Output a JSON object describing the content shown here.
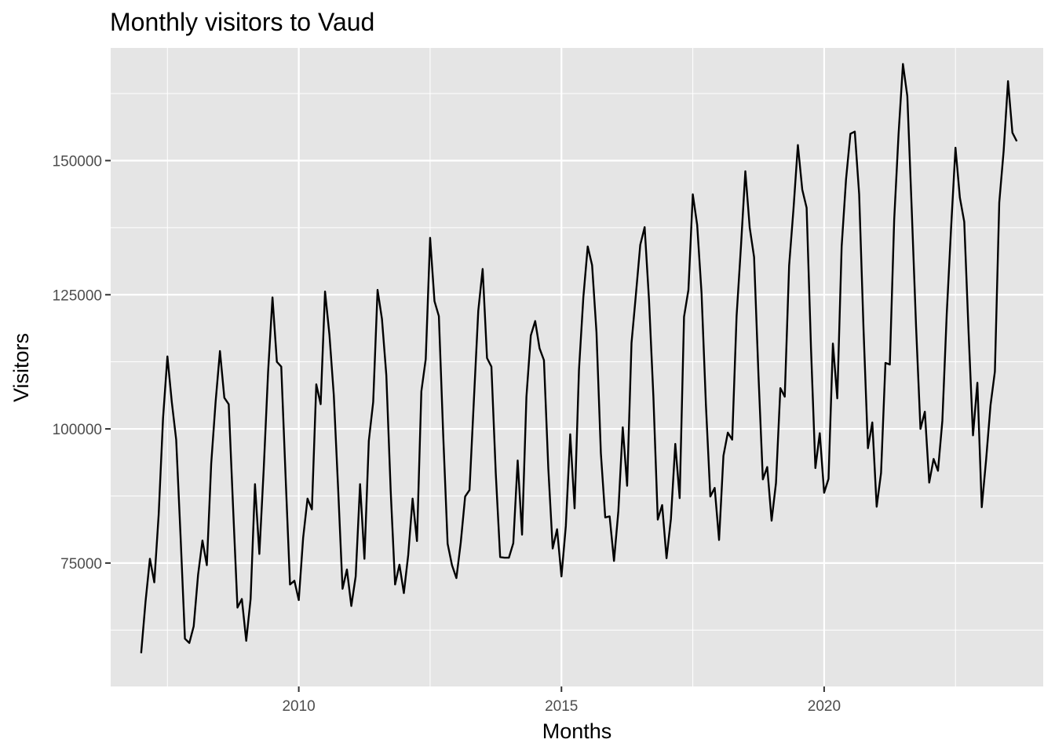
{
  "chart_data": {
    "type": "line",
    "title": "Monthly visitors to Vaud",
    "xlabel": "Months",
    "ylabel": "Visitors",
    "xlim": [
      2006.42,
      2024.17
    ],
    "ylim": [
      52000,
      171000
    ],
    "x_major_ticks": [
      2010,
      2015,
      2020
    ],
    "x_tick_labels": [
      "2010",
      "2015",
      "2020"
    ],
    "x_minor_ticks": [
      2007.5,
      2012.5,
      2017.5,
      2022.5
    ],
    "y_major_ticks": [
      75000,
      100000,
      125000,
      150000
    ],
    "y_tick_labels": [
      "75000",
      "100000",
      "125000",
      "150000"
    ],
    "y_minor_ticks": [
      62500,
      87500,
      112500,
      137500,
      162500
    ],
    "grid": true,
    "background": "#e5e5e5",
    "grid_color": "#ffffff",
    "line_color": "#000000",
    "series": [
      {
        "name": "",
        "start_year": 2007,
        "start_month": 1,
        "values": [
          58200,
          67800,
          75800,
          71400,
          84000,
          102000,
          113500,
          105000,
          98000,
          80000,
          60900,
          60100,
          63200,
          72800,
          79200,
          74600,
          93500,
          105000,
          114500,
          105800,
          104600,
          85300,
          66700,
          68300,
          60500,
          68300,
          89700,
          76700,
          92600,
          110700,
          124500,
          112500,
          111600,
          90900,
          71000,
          71700,
          68100,
          79700,
          87000,
          85000,
          108300,
          104600,
          125600,
          117600,
          106300,
          88700,
          70200,
          73800,
          67000,
          72500,
          89700,
          75800,
          97800,
          105000,
          125900,
          120500,
          110000,
          88400,
          71000,
          74700,
          69400,
          76500,
          87000,
          79100,
          107000,
          113000,
          135600,
          123800,
          121000,
          98700,
          78600,
          74600,
          72200,
          78800,
          87400,
          88600,
          105400,
          122000,
          129800,
          113200,
          111600,
          91700,
          76100,
          76000,
          76000,
          78700,
          94100,
          80300,
          106000,
          117400,
          120100,
          115000,
          112800,
          92600,
          77700,
          81300,
          72500,
          81900,
          99000,
          85200,
          111000,
          124500,
          134000,
          130500,
          118000,
          95500,
          83500,
          83700,
          75400,
          84700,
          100300,
          89400,
          116000,
          125000,
          134300,
          137600,
          124000,
          106000,
          83100,
          85800,
          75900,
          83200,
          97200,
          87100,
          120900,
          125900,
          143700,
          138000,
          125300,
          104400,
          87400,
          89000,
          79300,
          95000,
          99300,
          98000,
          121000,
          134000,
          148000,
          137500,
          132000,
          110000,
          90600,
          92900,
          82900,
          89900,
          107600,
          106000,
          130400,
          141000,
          152900,
          144600,
          141200,
          115000,
          92700,
          99200,
          88100,
          90700,
          115900,
          105700,
          134000,
          146500,
          155000,
          155400,
          143700,
          118500,
          96400,
          101200,
          85500,
          91800,
          112300,
          112000,
          139000,
          155000,
          168000,
          162000,
          141000,
          119000,
          100000,
          103200,
          90000,
          94400,
          92200,
          101500,
          121400,
          137500,
          152400,
          143100,
          138600,
          117800,
          98800,
          108600,
          85400,
          94300,
          104400,
          110700,
          142200,
          151800,
          164800,
          155200,
          153600
        ]
      }
    ]
  }
}
